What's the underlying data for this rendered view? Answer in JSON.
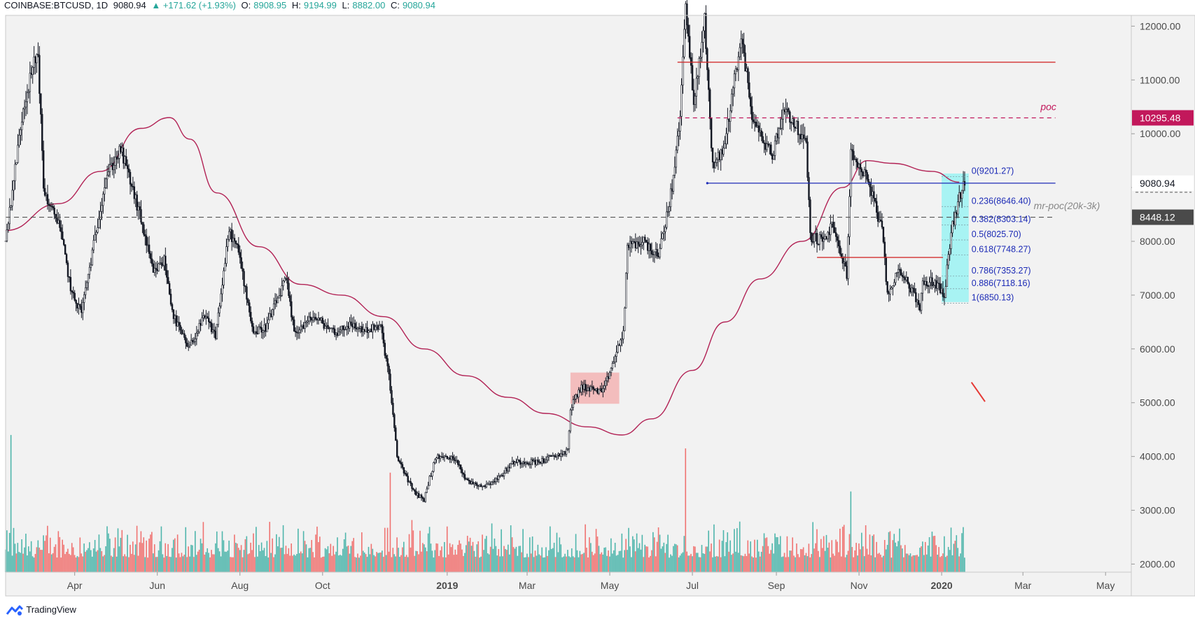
{
  "header": {
    "symbol": "COINBASE:BTCUSD, 1D",
    "last": "9080.94",
    "change": "▲ +171.62 (+1.93%)",
    "o_label": "O:",
    "o_value": "8908.95",
    "h_label": "H:",
    "h_value": "9194.99",
    "l_label": "L:",
    "l_value": "8882.00",
    "c_label": "C:",
    "c_value": "9080.94"
  },
  "footer": {
    "brand": "TradingView"
  },
  "colors": {
    "background": "#f2f2f2",
    "candle": "#131722",
    "ma": "#b22255",
    "hline_red": "#d32f2f",
    "hline_blue": "#1c2bb6",
    "fib_text": "#1c2bb6",
    "poc": "#c2185b",
    "vol_up": "#26a69a",
    "vol_down": "#ef5350",
    "box_pink": "#f4a6a6",
    "box_cyan": "#7ff2f2"
  },
  "chart_data": {
    "type": "candlestick",
    "title": "COINBASE:BTCUSD, 1D",
    "y_axis": {
      "min": 1850,
      "max": 12200,
      "ticks": [
        2000,
        3000,
        4000,
        5000,
        6000,
        7000,
        8000,
        9000,
        10000,
        11000,
        12000
      ],
      "tick_labels": [
        "2000.00",
        "3000.00",
        "4000.00",
        "5000.00",
        "6000.00",
        "7000.00",
        "8000.00",
        "9000.00",
        "10000.00",
        "11000.00",
        "12000.00"
      ]
    },
    "x_axis": {
      "range": [
        "2018-02-09",
        "2020-05-20"
      ],
      "ticks": [
        {
          "date": "2018-04-01",
          "label": "Apr",
          "bold": false
        },
        {
          "date": "2018-06-01",
          "label": "Jun",
          "bold": false
        },
        {
          "date": "2018-08-01",
          "label": "Aug",
          "bold": false
        },
        {
          "date": "2018-10-01",
          "label": "Oct",
          "bold": false
        },
        {
          "date": "2019-01-01",
          "label": "2019",
          "bold": true
        },
        {
          "date": "2019-03-01",
          "label": "Mar",
          "bold": false
        },
        {
          "date": "2019-05-01",
          "label": "May",
          "bold": false
        },
        {
          "date": "2019-07-01",
          "label": "Jul",
          "bold": false
        },
        {
          "date": "2019-09-01",
          "label": "Sep",
          "bold": false
        },
        {
          "date": "2019-11-01",
          "label": "Nov",
          "bold": false
        },
        {
          "date": "2020-01-01",
          "label": "2020",
          "bold": true
        },
        {
          "date": "2020-03-01",
          "label": "Mar",
          "bold": false
        },
        {
          "date": "2020-05-01",
          "label": "May",
          "bold": false
        }
      ]
    },
    "price_path": [
      [
        "2018-02-09",
        8000
      ],
      [
        "2018-02-22",
        10500
      ],
      [
        "2018-03-02",
        11300
      ],
      [
        "2018-03-05",
        11500
      ],
      [
        "2018-03-09",
        9000
      ],
      [
        "2018-03-14",
        8600
      ],
      [
        "2018-03-20",
        8400
      ],
      [
        "2018-03-30",
        7000
      ],
      [
        "2018-04-06",
        6700
      ],
      [
        "2018-04-12",
        7500
      ],
      [
        "2018-04-24",
        9200
      ],
      [
        "2018-05-05",
        9700
      ],
      [
        "2018-05-10",
        9300
      ],
      [
        "2018-05-20",
        8400
      ],
      [
        "2018-05-29",
        7400
      ],
      [
        "2018-06-06",
        7650
      ],
      [
        "2018-06-13",
        6600
      ],
      [
        "2018-06-24",
        6000
      ],
      [
        "2018-07-06",
        6600
      ],
      [
        "2018-07-14",
        6250
      ],
      [
        "2018-07-24",
        8200
      ],
      [
        "2018-07-31",
        7800
      ],
      [
        "2018-08-11",
        6300
      ],
      [
        "2018-08-20",
        6400
      ],
      [
        "2018-09-04",
        7300
      ],
      [
        "2018-09-10",
        6300
      ],
      [
        "2018-09-20",
        6500
      ],
      [
        "2018-09-24",
        6600
      ],
      [
        "2018-10-11",
        6300
      ],
      [
        "2018-10-20",
        6450
      ],
      [
        "2018-11-01",
        6350
      ],
      [
        "2018-11-13",
        6400
      ],
      [
        "2018-11-19",
        5500
      ],
      [
        "2018-11-25",
        4000
      ],
      [
        "2018-12-07",
        3350
      ],
      [
        "2018-12-15",
        3200
      ],
      [
        "2018-12-19",
        3600
      ],
      [
        "2018-12-24",
        4000
      ],
      [
        "2019-01-08",
        3950
      ],
      [
        "2019-01-15",
        3550
      ],
      [
        "2019-01-28",
        3450
      ],
      [
        "2019-02-08",
        3600
      ],
      [
        "2019-02-19",
        3900
      ],
      [
        "2019-03-10",
        3900
      ],
      [
        "2019-03-31",
        4100
      ],
      [
        "2019-04-02",
        4900
      ],
      [
        "2019-04-10",
        5300
      ],
      [
        "2019-04-26",
        5200
      ],
      [
        "2019-05-11",
        6300
      ],
      [
        "2019-05-14",
        7900
      ],
      [
        "2019-05-26",
        8000
      ],
      [
        "2019-06-06",
        7700
      ],
      [
        "2019-06-16",
        9000
      ],
      [
        "2019-06-22",
        10300
      ],
      [
        "2019-06-26",
        12500
      ],
      [
        "2019-07-02",
        10500
      ],
      [
        "2019-07-10",
        12100
      ],
      [
        "2019-07-16",
        9400
      ],
      [
        "2019-07-24",
        9700
      ],
      [
        "2019-08-06",
        11800
      ],
      [
        "2019-08-15",
        10200
      ],
      [
        "2019-08-29",
        9600
      ],
      [
        "2019-09-07",
        10500
      ],
      [
        "2019-09-23",
        9800
      ],
      [
        "2019-09-26",
        8100
      ],
      [
        "2019-10-06",
        8000
      ],
      [
        "2019-10-12",
        8300
      ],
      [
        "2019-10-23",
        7400
      ],
      [
        "2019-10-26",
        9600
      ],
      [
        "2019-11-07",
        9200
      ],
      [
        "2019-11-18",
        8200
      ],
      [
        "2019-11-22",
        7000
      ],
      [
        "2019-12-01",
        7500
      ],
      [
        "2019-12-16",
        6800
      ],
      [
        "2019-12-18",
        7200
      ],
      [
        "2019-12-27",
        7250
      ],
      [
        "2020-01-03",
        7000
      ],
      [
        "2020-01-08",
        8200
      ],
      [
        "2020-01-14",
        8800
      ],
      [
        "2020-01-18",
        9080.94
      ]
    ],
    "moving_average": [
      [
        "2018-02-09",
        8200
      ],
      [
        "2018-03-20",
        8700
      ],
      [
        "2018-04-20",
        9300
      ],
      [
        "2018-05-20",
        10100
      ],
      [
        "2018-06-10",
        10300
      ],
      [
        "2018-06-25",
        9900
      ],
      [
        "2018-07-15",
        8900
      ],
      [
        "2018-08-15",
        7900
      ],
      [
        "2018-09-15",
        7200
      ],
      [
        "2018-10-15",
        7000
      ],
      [
        "2018-11-15",
        6600
      ],
      [
        "2018-12-15",
        6000
      ],
      [
        "2019-01-15",
        5500
      ],
      [
        "2019-02-15",
        5100
      ],
      [
        "2019-03-15",
        4800
      ],
      [
        "2019-04-15",
        4550
      ],
      [
        "2019-05-10",
        4400
      ],
      [
        "2019-06-01",
        4700
      ],
      [
        "2019-07-01",
        5600
      ],
      [
        "2019-07-25",
        6500
      ],
      [
        "2019-08-20",
        7300
      ],
      [
        "2019-09-20",
        8000
      ],
      [
        "2019-10-20",
        9000
      ],
      [
        "2019-11-07",
        9500
      ],
      [
        "2019-11-25",
        9450
      ],
      [
        "2019-12-25",
        9300
      ],
      [
        "2020-01-14",
        9100
      ]
    ],
    "volume_bars": 720,
    "volume_spikes": [
      [
        "2018-02-13",
        4400
      ],
      [
        "2018-11-20",
        3700
      ],
      [
        "2019-06-26",
        4150
      ],
      [
        "2019-10-26",
        3350
      ]
    ],
    "horizontal_lines": [
      {
        "start": "2019-06-20",
        "end": "2020-03-25",
        "value": 11330,
        "style": "red"
      },
      {
        "start": "2019-07-12",
        "end": "2020-03-25",
        "value": 9080.94,
        "style": "blue"
      },
      {
        "start": "2019-10-01",
        "end": "2020-01-02",
        "value": 7700,
        "style": "red"
      },
      {
        "start": "2019-06-20",
        "end": "2020-03-25",
        "value": 10295.48,
        "style": "poc-dashed"
      },
      {
        "start": "2018-02-09",
        "end": "2020-03-25",
        "value": 8448.12,
        "style": "gray-dashed"
      }
    ],
    "zones": [
      {
        "start": "2019-04-02",
        "end": "2019-05-08",
        "low": 4980,
        "high": 5560,
        "style": "pink"
      },
      {
        "start": "2020-01-01",
        "end": "2020-01-21",
        "low": 6870,
        "high": 9260,
        "style": "cyan"
      }
    ],
    "fib_levels": [
      {
        "label": "0(9201.27)",
        "value": 9201.27
      },
      {
        "label": "0.236(8646.40)",
        "value": 8646.4
      },
      {
        "label": "0.382(8303.14)",
        "value": 8303.14
      },
      {
        "label": "0.5(8025.70)",
        "value": 8025.7
      },
      {
        "label": "0.618(7748.27)",
        "value": 7748.27
      },
      {
        "label": "0.786(7353.27)",
        "value": 7353.27
      },
      {
        "label": "0.886(7118.16)",
        "value": 7118.16
      },
      {
        "label": "1(6850.13)",
        "value": 6850.13
      }
    ],
    "annotations": [
      {
        "text": "poc",
        "date": "2020-03-14",
        "value": 10440
      },
      {
        "text": "mr-poc(20k-3k)",
        "date": "2020-03-09",
        "value": 8600
      }
    ],
    "arrow": {
      "from": [
        "2020-01-23",
        5380
      ],
      "to": [
        "2020-02-02",
        5020
      ]
    },
    "price_labels": [
      {
        "text": "10295.48",
        "value": 10295.48,
        "style": "poc"
      },
      {
        "text": "9080.94",
        "value": 9080.94,
        "style": "last"
      },
      {
        "text": "8448.12",
        "value": 8448.12,
        "style": "gray"
      }
    ]
  }
}
